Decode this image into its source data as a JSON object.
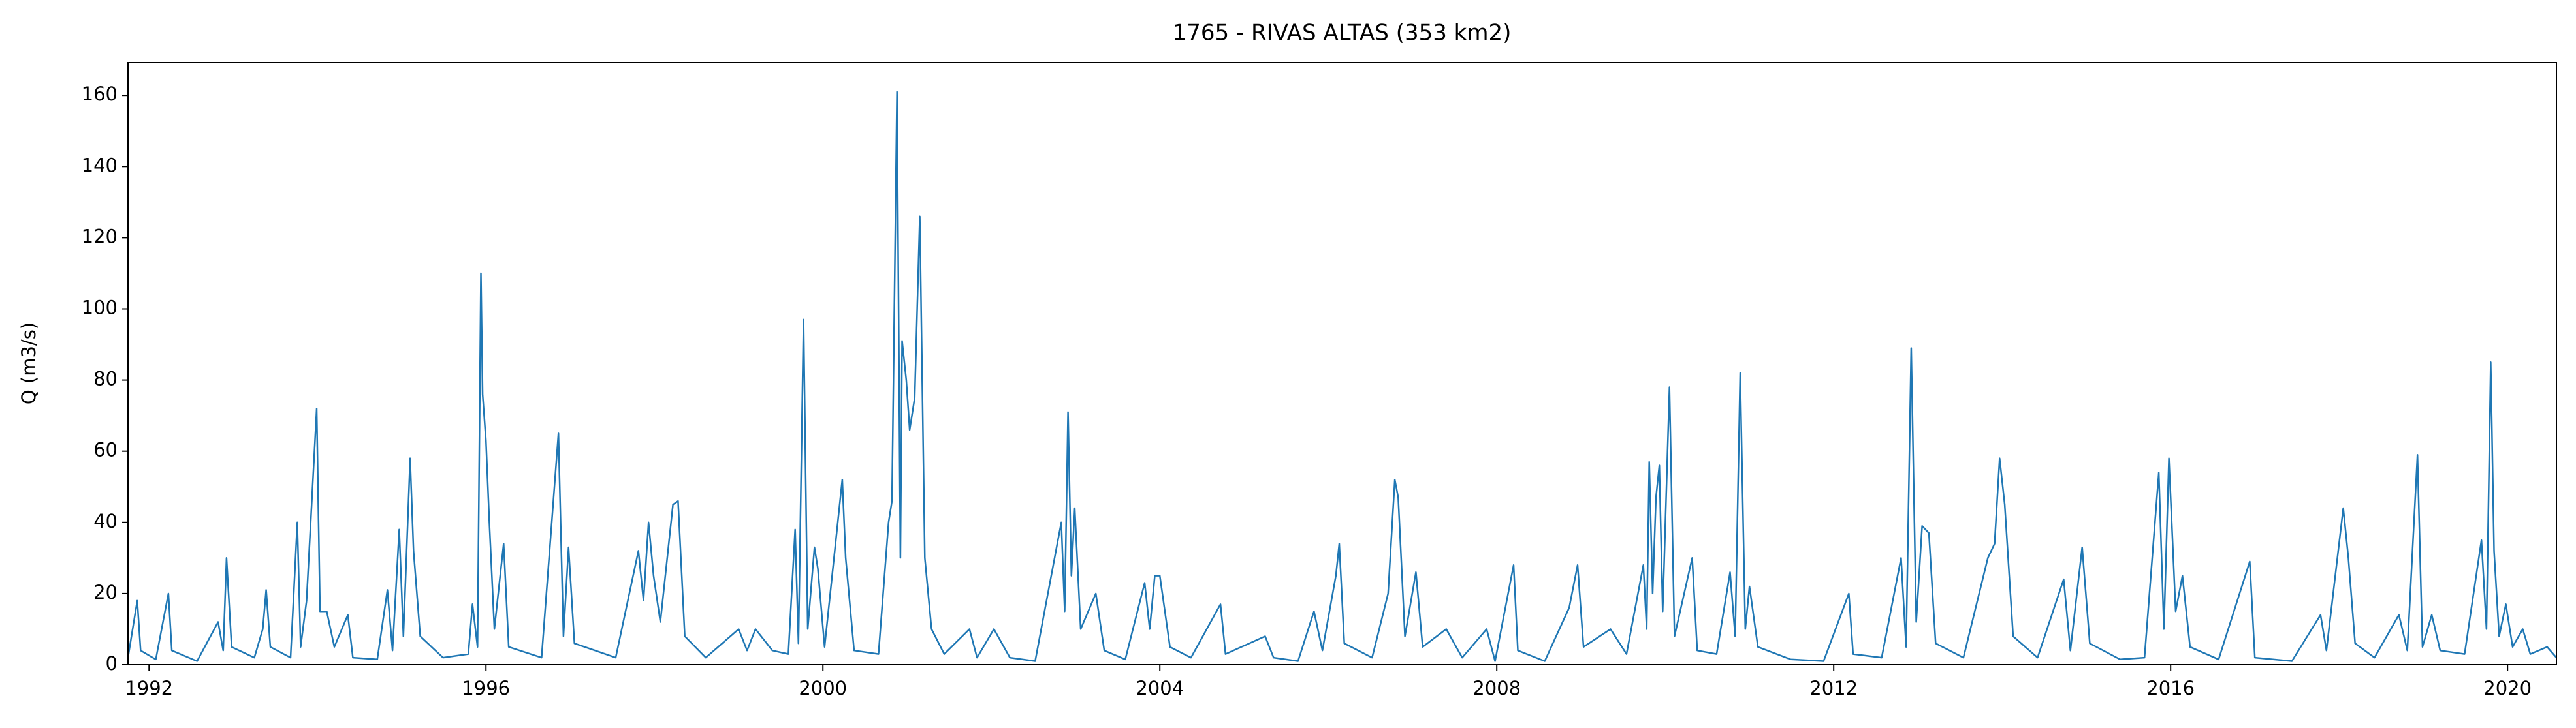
{
  "chart_data": {
    "type": "line",
    "title": "1765 - RIVAS ALTAS (353 km2)",
    "y_label": "Q (m3/s)",
    "color": "#1f77b4",
    "xlim": [
      1991.75,
      2020.58
    ],
    "xticks": [
      1992,
      1996,
      2000,
      2004,
      2008,
      2012,
      2016,
      2020
    ],
    "ylim": [
      0,
      169.2
    ],
    "yticks": [
      0,
      20,
      40,
      60,
      80,
      100,
      120,
      140,
      160
    ],
    "x": [
      1991.75,
      1991.86,
      1991.9,
      1992.08,
      1992.23,
      1992.27,
      1992.57,
      1992.82,
      1992.88,
      1992.92,
      1992.98,
      1993.25,
      1993.35,
      1993.39,
      1993.44,
      1993.68,
      1993.76,
      1993.8,
      1993.87,
      1993.99,
      1994.03,
      1994.11,
      1994.2,
      1994.36,
      1994.42,
      1994.71,
      1994.83,
      1994.89,
      1994.97,
      1995.02,
      1995.1,
      1995.14,
      1995.22,
      1995.49,
      1995.79,
      1995.84,
      1995.9,
      1995.94,
      1995.96,
      1996.0,
      1996.04,
      1996.1,
      1996.21,
      1996.27,
      1996.66,
      1996.86,
      1996.92,
      1996.98,
      1997.05,
      1997.54,
      1997.81,
      1997.87,
      1997.93,
      1997.99,
      1998.07,
      1998.22,
      1998.28,
      1998.36,
      1998.61,
      1999.0,
      1999.1,
      1999.2,
      1999.4,
      1999.59,
      1999.67,
      1999.71,
      1999.77,
      1999.82,
      1999.9,
      1999.94,
      2000.02,
      2000.23,
      2000.27,
      2000.37,
      2000.66,
      2000.78,
      2000.82,
      2000.88,
      2000.92,
      2000.94,
      2000.99,
      2001.03,
      2001.09,
      2001.15,
      2001.21,
      2001.29,
      2001.44,
      2001.74,
      2001.83,
      2002.03,
      2002.22,
      2002.52,
      2002.83,
      2002.87,
      2002.91,
      2002.95,
      2002.99,
      2003.06,
      2003.24,
      2003.34,
      2003.59,
      2003.82,
      2003.88,
      2003.94,
      2004.0,
      2004.12,
      2004.37,
      2004.72,
      2004.78,
      2005.25,
      2005.35,
      2005.64,
      2005.83,
      2005.93,
      2006.09,
      2006.13,
      2006.19,
      2006.52,
      2006.71,
      2006.79,
      2006.83,
      2006.91,
      2007.04,
      2007.12,
      2007.4,
      2007.59,
      2007.88,
      2007.98,
      2008.2,
      2008.25,
      2008.57,
      2008.86,
      2008.96,
      2009.03,
      2009.35,
      2009.54,
      2009.74,
      2009.78,
      2009.81,
      2009.85,
      2009.89,
      2009.93,
      2009.97,
      2010.05,
      2010.11,
      2010.32,
      2010.38,
      2010.61,
      2010.77,
      2010.83,
      2010.89,
      2010.95,
      2011.0,
      2011.1,
      2011.49,
      2011.88,
      2012.18,
      2012.23,
      2012.57,
      2012.8,
      2012.86,
      2012.92,
      2012.98,
      2013.05,
      2013.13,
      2013.21,
      2013.54,
      2013.83,
      2013.91,
      2013.97,
      2014.03,
      2014.13,
      2014.42,
      2014.73,
      2014.81,
      2014.95,
      2015.04,
      2015.4,
      2015.69,
      2015.86,
      2015.92,
      2015.98,
      2016.06,
      2016.14,
      2016.23,
      2016.57,
      2016.94,
      2017.0,
      2017.44,
      2017.78,
      2017.85,
      2018.05,
      2018.11,
      2018.19,
      2018.42,
      2018.71,
      2018.81,
      2018.93,
      2018.99,
      2019.1,
      2019.2,
      2019.49,
      2019.69,
      2019.75,
      2019.8,
      2019.84,
      2019.9,
      2019.98,
      2020.06,
      2020.18,
      2020.27,
      2020.47,
      2020.58
    ],
    "values": [
      2,
      18,
      4,
      1.5,
      20,
      4,
      1,
      12,
      4,
      30,
      5,
      2,
      10,
      21,
      5,
      2,
      40,
      5,
      18,
      72,
      15,
      15,
      5,
      14,
      2,
      1.5,
      21,
      4,
      38,
      8,
      58,
      32,
      8,
      2,
      3,
      17,
      5,
      110,
      76,
      63,
      40,
      10,
      34,
      5,
      2,
      65,
      8,
      33,
      6,
      2,
      32,
      18,
      40,
      25,
      12,
      45,
      46,
      8,
      2,
      10,
      4,
      10,
      4,
      3,
      38,
      6,
      97,
      10,
      33,
      27,
      5,
      52,
      30,
      4,
      3,
      40,
      46,
      161,
      30,
      91,
      80,
      66,
      75,
      126,
      30,
      10,
      3,
      10,
      2,
      10,
      2,
      1,
      40,
      15,
      71,
      25,
      44,
      10,
      20,
      4,
      1.5,
      23,
      10,
      25,
      25,
      5,
      2,
      17,
      3,
      8,
      2,
      1,
      15,
      4,
      25,
      34,
      6,
      2,
      20,
      52,
      47,
      8,
      26,
      5,
      10,
      2,
      10,
      1,
      28,
      4,
      1,
      16,
      28,
      5,
      10,
      3,
      28,
      10,
      57,
      20,
      47,
      56,
      15,
      78,
      8,
      30,
      4,
      3,
      26,
      8,
      82,
      10,
      22,
      5,
      1.5,
      1,
      20,
      3,
      2,
      30,
      5,
      89,
      12,
      39,
      37,
      6,
      2,
      30,
      34,
      58,
      45,
      8,
      2,
      24,
      4,
      33,
      6,
      1.5,
      2,
      54,
      10,
      58,
      15,
      25,
      5,
      1.5,
      29,
      2,
      1,
      14,
      4,
      44,
      30,
      6,
      2,
      14,
      4,
      59,
      5,
      14,
      4,
      3,
      35,
      10,
      85,
      32,
      8,
      17,
      5,
      10,
      3,
      5,
      2
    ]
  }
}
